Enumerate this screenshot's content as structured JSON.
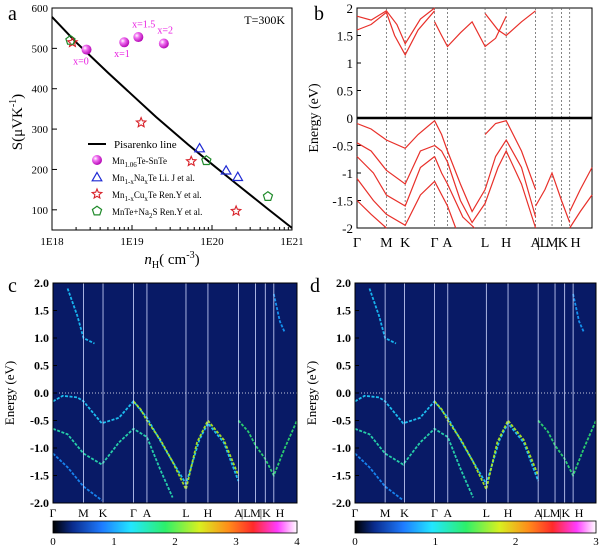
{
  "panel_letters": [
    "a",
    "b",
    "c",
    "d"
  ],
  "chart_data": [
    {
      "panel": "a",
      "type": "scatter",
      "xlabel": "n",
      "xlabel_sub": "H",
      "xlabel_unit": "( cm",
      "xlabel_unit_sup": "-3",
      "xlabel_close": ")",
      "ylabel": "S(μVK",
      "ylabel_sup": "-1",
      "ylabel_close": ")",
      "xscale": "log",
      "xlim": [
        1e+18,
        1e+21
      ],
      "ylim": [
        50,
        600
      ],
      "xtick_labels": [
        "1E18",
        "1E19",
        "1E20",
        "1E21"
      ],
      "xtick_values": [
        1e+18,
        1e+19,
        1e+20,
        1e+21
      ],
      "ytick_values": [
        100,
        200,
        300,
        400,
        500,
        600
      ],
      "annotation": "T=300K",
      "point_labels": [
        {
          "text": "x=1.5",
          "x": 1.4e+19,
          "y": 552
        },
        {
          "text": "x=2",
          "x": 2.6e+19,
          "y": 537
        },
        {
          "text": "x=0",
          "x": 2.3e+18,
          "y": 460
        },
        {
          "text": "x=1",
          "x": 7.5e+18,
          "y": 478
        }
      ],
      "pisarenko": {
        "name": "Pisarenko line",
        "x": [
          1e+18,
          2e+18,
          5e+18,
          1e+19,
          2e+19,
          5e+19,
          1e+20,
          2e+20,
          5e+20,
          1e+21
        ],
        "y": [
          578,
          515,
          440,
          385,
          330,
          262,
          213,
          165,
          102,
          55
        ]
      },
      "series": [
        {
          "label_parts": [
            "Mn",
            "1.06",
            "Te-SnTe",
            "",
            ""
          ],
          "marker": "sphere",
          "color": "#e81be0",
          "x": [
            2.7e+18,
            8e+18,
            1.2e+19,
            2.5e+19
          ],
          "y": [
            497,
            515,
            528,
            512
          ]
        },
        {
          "label_parts": [
            "Mn",
            "1-x",
            "Na",
            "x",
            "Te        Li. J et al."
          ],
          "marker": "triangle",
          "color": "#1f2ad4",
          "x": [
            7e+19,
            1.5e+20,
            2.1e+20
          ],
          "y": [
            253,
            198,
            182
          ]
        },
        {
          "label_parts": [
            "Mn",
            "1-x",
            "Cu",
            "x",
            "Te    Ren.Y et al."
          ],
          "marker": "star",
          "color": "#d8222a",
          "x": [
            1.8e+18,
            1.3e+19,
            5.5e+19,
            2e+20
          ],
          "y": [
            515,
            316,
            220,
            97
          ]
        },
        {
          "label_parts": [
            "MnTe+Na",
            "2",
            "S   Ren.Y et al.",
            "",
            ""
          ],
          "marker": "pentagon",
          "color": "#1f8a2a",
          "x": [
            1.7e+18,
            8.5e+19,
            5e+20
          ],
          "y": [
            520,
            222,
            133
          ]
        }
      ]
    },
    {
      "panel": "b",
      "type": "line",
      "ylabel": "Energy (eV)",
      "ylim": [
        -2,
        2
      ],
      "ytick_labels": [
        "-2",
        "-1.5",
        "-1",
        "-0.5",
        "0",
        "0.5",
        "1",
        "1.5",
        "2"
      ],
      "kpoint_labels": [
        "Γ",
        "M",
        "K",
        "Γ",
        "A",
        "L",
        "H",
        "A",
        "|L",
        "M",
        "|K",
        "H"
      ],
      "band_color": "#e8302a"
    },
    {
      "panel": "c",
      "type": "heatmap",
      "ylabel": "Energy (eV)",
      "ylim": [
        -2,
        2
      ],
      "ytick_labels": [
        "2.0",
        "1.5",
        "1.0",
        "0.5",
        "0.0",
        "-0.5",
        "-1.0",
        "-1.5",
        "-2.0"
      ],
      "kpoint_labels": [
        "Γ",
        "M",
        "K",
        "Γ",
        "A",
        "L",
        "H",
        "A",
        "|L",
        "M",
        "|K",
        "H"
      ],
      "colorbar_ticks": [
        "0",
        "1",
        "2",
        "3",
        "4"
      ]
    },
    {
      "panel": "d",
      "type": "heatmap",
      "ylabel": "Energy (eV)",
      "ylim": [
        -2,
        2
      ],
      "ytick_labels": [
        "2.0",
        "1.5",
        "1.0",
        "0.5",
        "0.0",
        "-0.5",
        "-1.0",
        "-1.5",
        "-2.0"
      ],
      "kpoint_labels": [
        "Γ",
        "M",
        "K",
        "Γ",
        "A",
        "L",
        "H",
        "A",
        "|L",
        "M",
        "|K",
        "H"
      ],
      "colorbar_ticks": [
        "0",
        "1",
        "2",
        "3"
      ]
    }
  ]
}
